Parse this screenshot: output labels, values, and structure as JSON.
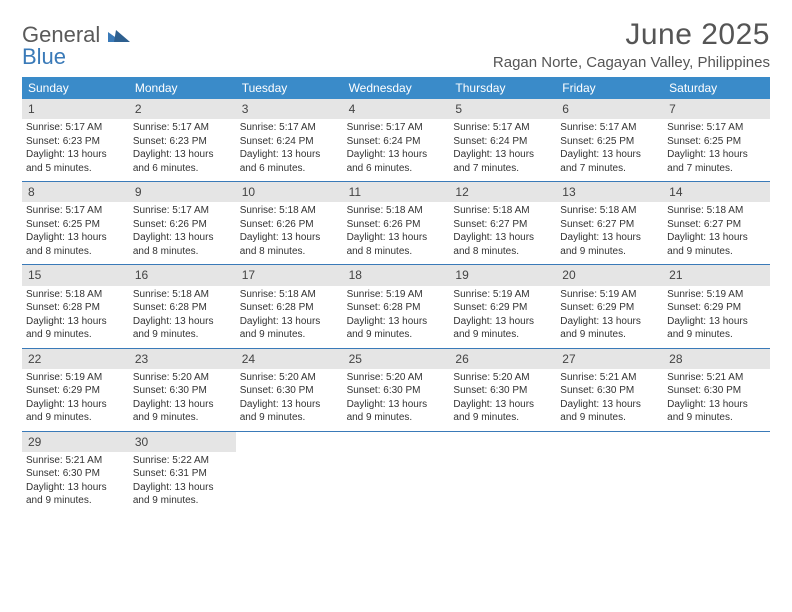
{
  "logo": {
    "line1": "General",
    "line2": "Blue"
  },
  "title": "June 2025",
  "location": "Ragan Norte, Cagayan Valley, Philippines",
  "colors": {
    "header_bg": "#3a8bc9",
    "header_text": "#ffffff",
    "daynum_bg": "#e5e5e5",
    "week_divider": "#3a7ab8",
    "logo_gray": "#5a5a5a",
    "logo_blue": "#3a7ab8",
    "body_text": "#333333"
  },
  "typography": {
    "title_fontsize": 30,
    "location_fontsize": 15,
    "dow_fontsize": 12,
    "daynum_fontsize": 12,
    "detail_fontsize": 10
  },
  "dow": [
    "Sunday",
    "Monday",
    "Tuesday",
    "Wednesday",
    "Thursday",
    "Friday",
    "Saturday"
  ],
  "days": [
    {
      "n": "1",
      "sr": "Sunrise: 5:17 AM",
      "ss": "Sunset: 6:23 PM",
      "dl": "Daylight: 13 hours and 5 minutes."
    },
    {
      "n": "2",
      "sr": "Sunrise: 5:17 AM",
      "ss": "Sunset: 6:23 PM",
      "dl": "Daylight: 13 hours and 6 minutes."
    },
    {
      "n": "3",
      "sr": "Sunrise: 5:17 AM",
      "ss": "Sunset: 6:24 PM",
      "dl": "Daylight: 13 hours and 6 minutes."
    },
    {
      "n": "4",
      "sr": "Sunrise: 5:17 AM",
      "ss": "Sunset: 6:24 PM",
      "dl": "Daylight: 13 hours and 6 minutes."
    },
    {
      "n": "5",
      "sr": "Sunrise: 5:17 AM",
      "ss": "Sunset: 6:24 PM",
      "dl": "Daylight: 13 hours and 7 minutes."
    },
    {
      "n": "6",
      "sr": "Sunrise: 5:17 AM",
      "ss": "Sunset: 6:25 PM",
      "dl": "Daylight: 13 hours and 7 minutes."
    },
    {
      "n": "7",
      "sr": "Sunrise: 5:17 AM",
      "ss": "Sunset: 6:25 PM",
      "dl": "Daylight: 13 hours and 7 minutes."
    },
    {
      "n": "8",
      "sr": "Sunrise: 5:17 AM",
      "ss": "Sunset: 6:25 PM",
      "dl": "Daylight: 13 hours and 8 minutes."
    },
    {
      "n": "9",
      "sr": "Sunrise: 5:17 AM",
      "ss": "Sunset: 6:26 PM",
      "dl": "Daylight: 13 hours and 8 minutes."
    },
    {
      "n": "10",
      "sr": "Sunrise: 5:18 AM",
      "ss": "Sunset: 6:26 PM",
      "dl": "Daylight: 13 hours and 8 minutes."
    },
    {
      "n": "11",
      "sr": "Sunrise: 5:18 AM",
      "ss": "Sunset: 6:26 PM",
      "dl": "Daylight: 13 hours and 8 minutes."
    },
    {
      "n": "12",
      "sr": "Sunrise: 5:18 AM",
      "ss": "Sunset: 6:27 PM",
      "dl": "Daylight: 13 hours and 8 minutes."
    },
    {
      "n": "13",
      "sr": "Sunrise: 5:18 AM",
      "ss": "Sunset: 6:27 PM",
      "dl": "Daylight: 13 hours and 9 minutes."
    },
    {
      "n": "14",
      "sr": "Sunrise: 5:18 AM",
      "ss": "Sunset: 6:27 PM",
      "dl": "Daylight: 13 hours and 9 minutes."
    },
    {
      "n": "15",
      "sr": "Sunrise: 5:18 AM",
      "ss": "Sunset: 6:28 PM",
      "dl": "Daylight: 13 hours and 9 minutes."
    },
    {
      "n": "16",
      "sr": "Sunrise: 5:18 AM",
      "ss": "Sunset: 6:28 PM",
      "dl": "Daylight: 13 hours and 9 minutes."
    },
    {
      "n": "17",
      "sr": "Sunrise: 5:18 AM",
      "ss": "Sunset: 6:28 PM",
      "dl": "Daylight: 13 hours and 9 minutes."
    },
    {
      "n": "18",
      "sr": "Sunrise: 5:19 AM",
      "ss": "Sunset: 6:28 PM",
      "dl": "Daylight: 13 hours and 9 minutes."
    },
    {
      "n": "19",
      "sr": "Sunrise: 5:19 AM",
      "ss": "Sunset: 6:29 PM",
      "dl": "Daylight: 13 hours and 9 minutes."
    },
    {
      "n": "20",
      "sr": "Sunrise: 5:19 AM",
      "ss": "Sunset: 6:29 PM",
      "dl": "Daylight: 13 hours and 9 minutes."
    },
    {
      "n": "21",
      "sr": "Sunrise: 5:19 AM",
      "ss": "Sunset: 6:29 PM",
      "dl": "Daylight: 13 hours and 9 minutes."
    },
    {
      "n": "22",
      "sr": "Sunrise: 5:19 AM",
      "ss": "Sunset: 6:29 PM",
      "dl": "Daylight: 13 hours and 9 minutes."
    },
    {
      "n": "23",
      "sr": "Sunrise: 5:20 AM",
      "ss": "Sunset: 6:30 PM",
      "dl": "Daylight: 13 hours and 9 minutes."
    },
    {
      "n": "24",
      "sr": "Sunrise: 5:20 AM",
      "ss": "Sunset: 6:30 PM",
      "dl": "Daylight: 13 hours and 9 minutes."
    },
    {
      "n": "25",
      "sr": "Sunrise: 5:20 AM",
      "ss": "Sunset: 6:30 PM",
      "dl": "Daylight: 13 hours and 9 minutes."
    },
    {
      "n": "26",
      "sr": "Sunrise: 5:20 AM",
      "ss": "Sunset: 6:30 PM",
      "dl": "Daylight: 13 hours and 9 minutes."
    },
    {
      "n": "27",
      "sr": "Sunrise: 5:21 AM",
      "ss": "Sunset: 6:30 PM",
      "dl": "Daylight: 13 hours and 9 minutes."
    },
    {
      "n": "28",
      "sr": "Sunrise: 5:21 AM",
      "ss": "Sunset: 6:30 PM",
      "dl": "Daylight: 13 hours and 9 minutes."
    },
    {
      "n": "29",
      "sr": "Sunrise: 5:21 AM",
      "ss": "Sunset: 6:30 PM",
      "dl": "Daylight: 13 hours and 9 minutes."
    },
    {
      "n": "30",
      "sr": "Sunrise: 5:22 AM",
      "ss": "Sunset: 6:31 PM",
      "dl": "Daylight: 13 hours and 9 minutes."
    }
  ]
}
